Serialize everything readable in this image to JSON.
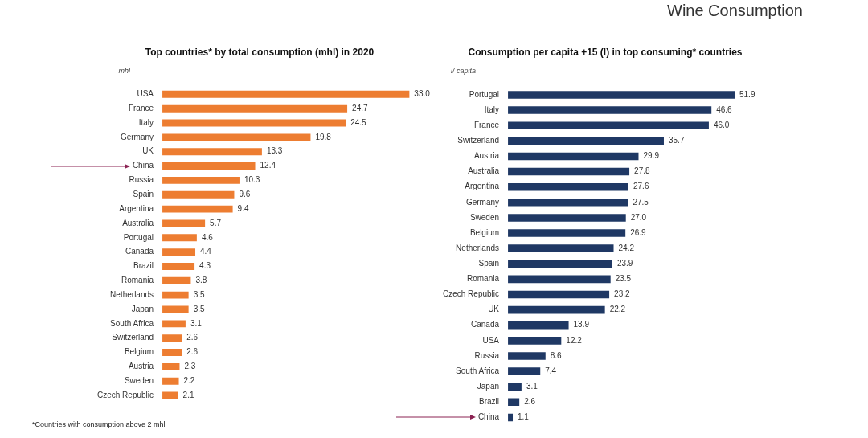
{
  "chart_data": [
    {
      "type": "bar",
      "orientation": "horizontal",
      "title": "Top countries* by total consumption (mhl) in 2020",
      "ylabel": "mhl",
      "categories": [
        "USA",
        "France",
        "Italy",
        "Germany",
        "UK",
        "China",
        "Russia",
        "Spain",
        "Argentina",
        "Australia",
        "Portugal",
        "Canada",
        "Brazil",
        "Romania",
        "Netherlands",
        "Japan",
        "South Africa",
        "Switzerland",
        "Belgium",
        "Austria",
        "Sweden",
        "Czech Republic"
      ],
      "values": [
        33.0,
        24.7,
        24.5,
        19.8,
        13.3,
        12.4,
        10.3,
        9.6,
        9.4,
        5.7,
        4.6,
        4.4,
        4.3,
        3.8,
        3.5,
        3.5,
        3.1,
        2.6,
        2.6,
        2.3,
        2.2,
        2.1
      ],
      "value_labels": [
        "33.0",
        "24.7",
        "24.5",
        "19.8",
        "13.3",
        "12.4",
        "10.3",
        "9.6",
        "9.4",
        "5.7",
        "4.6",
        "4.4",
        "4.3",
        "3.8",
        "3.5",
        "3.5",
        "3.1",
        "2.6",
        "2.6",
        "2.3",
        "2.2",
        "2.1"
      ],
      "color": "#ed7d31",
      "annotations": [
        "*Countries with consumption above 2 mhl"
      ]
    },
    {
      "type": "bar",
      "orientation": "horizontal",
      "title": "Consumption per capita +15 (l) in top consuming* countries",
      "ylabel": "l/ capita",
      "categories": [
        "Portugal",
        "Italy",
        "France",
        "Switzerland",
        "Austria",
        "Australia",
        "Argentina",
        "Germany",
        "Sweden",
        "Belgium",
        "Netherlands",
        "Spain",
        "Romania",
        "Czech Republic",
        "UK",
        "Canada",
        "USA",
        "Russia",
        "South Africa",
        "Japan",
        "Brazil",
        "China"
      ],
      "values": [
        51.9,
        46.6,
        46.0,
        35.7,
        29.9,
        27.8,
        27.6,
        27.5,
        27.0,
        26.9,
        24.2,
        23.9,
        23.5,
        23.2,
        22.2,
        13.9,
        12.2,
        8.6,
        7.4,
        3.1,
        2.6,
        1.1
      ],
      "value_labels": [
        "51.9",
        "46.6",
        "46.0",
        "35.7",
        "29.9",
        "27.8",
        "27.6",
        "27.5",
        "27.0",
        "26.9",
        "24.2",
        "23.9",
        "23.5",
        "23.2",
        "22.2",
        "13.9",
        "12.2",
        "8.6",
        "7.4",
        "3.1",
        "2.6",
        "1.1"
      ],
      "color": "#1f3864",
      "annotations": [
        "Wine Consumption"
      ]
    }
  ]
}
